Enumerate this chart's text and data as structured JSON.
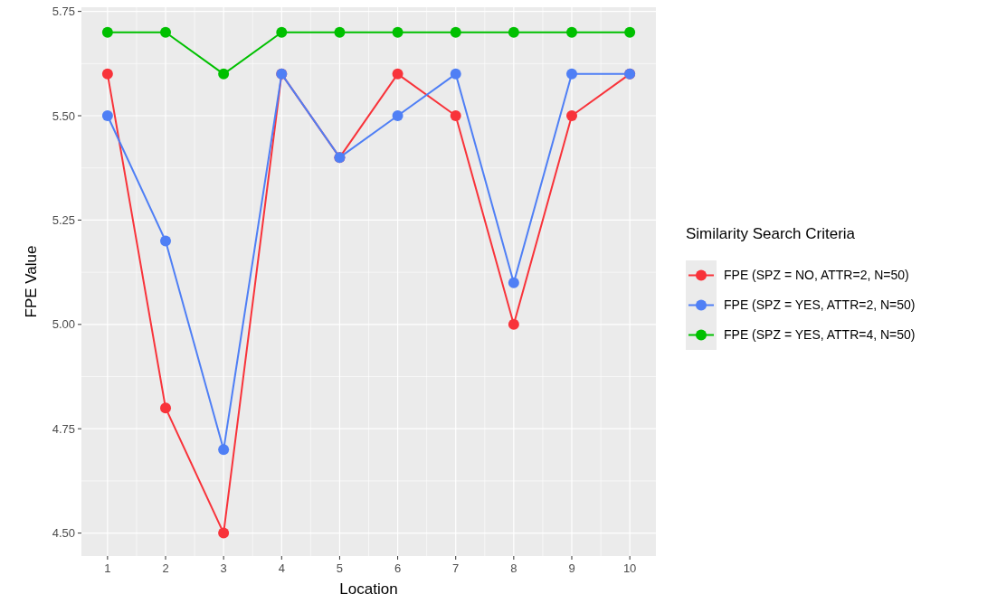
{
  "chart_data": {
    "type": "line",
    "xlabel": "Location",
    "ylabel": "FPE Value",
    "legend_title": "Similarity Search Criteria",
    "x": [
      1,
      2,
      3,
      4,
      5,
      6,
      7,
      8,
      9,
      10
    ],
    "xlim": [
      0.55,
      10.45
    ],
    "xticks": [
      1,
      2,
      3,
      4,
      5,
      6,
      7,
      8,
      9,
      10
    ],
    "ylim": [
      4.445,
      5.76
    ],
    "yticks": [
      {
        "value": 4.5,
        "label": "4.50"
      },
      {
        "value": 4.75,
        "label": "4.75"
      },
      {
        "value": 5,
        "label": "5.00"
      },
      {
        "value": 5.25,
        "label": "5.25"
      },
      {
        "value": 5.5,
        "label": "5.50"
      },
      {
        "value": 5.75,
        "label": "5.75"
      }
    ],
    "grid": true,
    "legend": "right",
    "marker": "circle",
    "line_style": "solid",
    "series": [
      {
        "name": "FPE (SPZ = NO, ATTR=2, N=50)",
        "color": "#f8333a",
        "values": [
          5.6,
          4.8,
          4.5,
          5.6,
          5.4,
          5.6,
          5.5,
          5.0,
          5.5,
          5.6
        ]
      },
      {
        "name": "FPE (SPZ = YES, ATTR=2, N=50)",
        "color": "#4f7ff5",
        "values": [
          5.5,
          5.2,
          4.7,
          5.6,
          5.4,
          5.5,
          5.6,
          5.1,
          5.6,
          5.6
        ]
      },
      {
        "name": "FPE (SPZ = YES, ATTR=4, N=50)",
        "color": "#00c000",
        "values": [
          5.7,
          5.7,
          5.6,
          5.7,
          5.7,
          5.7,
          5.7,
          5.7,
          5.7,
          5.7
        ]
      }
    ]
  }
}
